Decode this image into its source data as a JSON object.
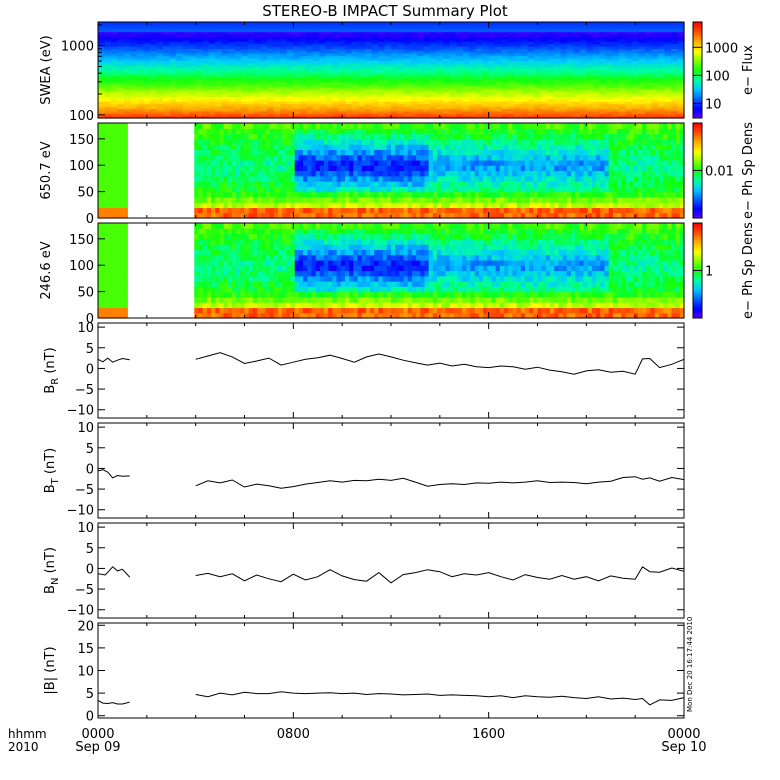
{
  "colors": {
    "background": "#ffffff",
    "axis": "#000000",
    "gap": "#ffffff",
    "colormap": [
      "#5b00ff",
      "#0000ff",
      "#0060ff",
      "#00c8ff",
      "#00ffa0",
      "#10ff10",
      "#80ff00",
      "#ffff00",
      "#ffb000",
      "#ff5000",
      "#ff0000"
    ]
  },
  "chart_data": [
    {
      "type": "heatmap",
      "title": "STEREO-B IMPACT Summary Plot",
      "ylabel": "SWEA (eV)",
      "ylog": true,
      "yticks": [
        100,
        1000
      ],
      "ytick_labels": [
        "100",
        "1000"
      ],
      "colorbar": {
        "label": "e− Flux",
        "log": true,
        "tick_labels": [
          "10",
          "100",
          "1000"
        ],
        "tick_values": [
          10,
          100,
          1000
        ],
        "range": [
          3,
          8000
        ]
      },
      "description_bands": "high energy low flux, low energy high flux"
    },
    {
      "type": "heatmap",
      "ylabel": "650.7 eV",
      "ylim": [
        0,
        180
      ],
      "yticks": [
        0,
        50,
        100,
        150
      ],
      "ytick_labels": [
        "0",
        "50",
        "100",
        "150"
      ],
      "colorbar": {
        "label": "e− Ph Sp Dens",
        "tick_labels": [
          "0.01"
        ],
        "tick_values": [
          0.01
        ]
      },
      "data_gap_hours": [
        1.15,
        3.95
      ]
    },
    {
      "type": "heatmap",
      "ylabel": "246.6 eV",
      "ylim": [
        0,
        180
      ],
      "yticks": [
        0,
        50,
        100,
        150
      ],
      "ytick_labels": [
        "0",
        "50",
        "100",
        "150"
      ],
      "colorbar": {
        "label": "e− Ph Sp Dens",
        "tick_labels": [
          "1"
        ],
        "tick_values": [
          1
        ]
      },
      "data_gap_hours": [
        1.15,
        3.95
      ]
    },
    {
      "type": "line",
      "ylabel_main": "B",
      "ylabel_sub": "R",
      "ylabel_unit": " (nT)",
      "ylim": [
        -12,
        11
      ],
      "yticks": [
        -10,
        -5,
        0,
        5,
        10
      ],
      "ytick_labels": [
        "−10",
        "−5",
        "0",
        "5",
        "10"
      ],
      "segments": [
        {
          "x": [
            0,
            0.2,
            0.4,
            0.6,
            0.8,
            1.0,
            1.3
          ],
          "y": [
            2.2,
            1.6,
            2.5,
            1.5,
            2.0,
            2.4,
            2.1
          ]
        },
        {
          "x": [
            4,
            4.5,
            5,
            5.5,
            6,
            6.5,
            7,
            7.5,
            8,
            8.5,
            9,
            9.5,
            10,
            10.5,
            11,
            11.5,
            12,
            12.5,
            13,
            13.5,
            14,
            14.5,
            15,
            15.5,
            16,
            16.5,
            17,
            17.5,
            18,
            18.5,
            19,
            19.5,
            20,
            20.5,
            21,
            21.5,
            22,
            22.3,
            22.6,
            23,
            23.5,
            24
          ],
          "y": [
            2.2,
            3.0,
            3.8,
            2.8,
            1.2,
            1.8,
            2.5,
            0.8,
            1.5,
            2.2,
            2.6,
            3.2,
            2.4,
            1.5,
            2.8,
            3.5,
            2.8,
            2.0,
            1.4,
            0.8,
            1.3,
            0.6,
            1.0,
            0.4,
            0.2,
            0.6,
            0.4,
            -0.2,
            0.3,
            -0.4,
            -0.8,
            -1.4,
            -0.6,
            -0.3,
            -0.9,
            -0.7,
            -1.4,
            2.3,
            2.4,
            0.2,
            1.0,
            2.2
          ]
        }
      ]
    },
    {
      "type": "line",
      "ylabel_main": "B",
      "ylabel_sub": "T",
      "ylabel_unit": " (nT)",
      "ylim": [
        -12,
        11
      ],
      "yticks": [
        -10,
        -5,
        0,
        5,
        10
      ],
      "ytick_labels": [
        "−10",
        "−5",
        "0",
        "5",
        "10"
      ],
      "segments": [
        {
          "x": [
            0,
            0.2,
            0.4,
            0.6,
            0.8,
            1.0,
            1.3
          ],
          "y": [
            -0.6,
            -0.3,
            -0.9,
            -2.3,
            -1.7,
            -1.9,
            -1.8
          ]
        },
        {
          "x": [
            4,
            4.5,
            5,
            5.5,
            6,
            6.5,
            7,
            7.5,
            8,
            8.5,
            9,
            9.5,
            10,
            10.5,
            11,
            11.5,
            12,
            12.5,
            13,
            13.5,
            14,
            14.5,
            15,
            15.5,
            16,
            16.5,
            17,
            17.5,
            18,
            18.5,
            19,
            19.5,
            20,
            20.5,
            21,
            21.5,
            22,
            22.3,
            22.6,
            23,
            23.5,
            24
          ],
          "y": [
            -4.2,
            -3.0,
            -3.5,
            -2.8,
            -4.5,
            -3.8,
            -4.2,
            -4.8,
            -4.4,
            -3.8,
            -3.4,
            -3.0,
            -3.3,
            -2.9,
            -3.0,
            -2.6,
            -2.9,
            -2.4,
            -3.3,
            -4.3,
            -3.9,
            -3.7,
            -3.9,
            -3.5,
            -3.6,
            -3.3,
            -3.5,
            -3.3,
            -3.0,
            -3.4,
            -3.3,
            -3.4,
            -3.7,
            -3.3,
            -3.1,
            -2.2,
            -2.0,
            -2.6,
            -2.3,
            -3.1,
            -2.2,
            -2.7
          ]
        }
      ]
    },
    {
      "type": "line",
      "ylabel_main": "B",
      "ylabel_sub": "N",
      "ylabel_unit": " (nT)",
      "ylim": [
        -12,
        11
      ],
      "yticks": [
        -10,
        -5,
        0,
        5,
        10
      ],
      "ytick_labels": [
        "−10",
        "−5",
        "0",
        "5",
        "10"
      ],
      "segments": [
        {
          "x": [
            0,
            0.3,
            0.6,
            0.8,
            1.0,
            1.3
          ],
          "y": [
            -1.3,
            -1.6,
            0.4,
            -0.6,
            -0.2,
            -2.1
          ]
        },
        {
          "x": [
            4,
            4.5,
            5,
            5.5,
            6,
            6.5,
            7,
            7.5,
            8,
            8.5,
            9,
            9.5,
            10,
            10.5,
            11,
            11.5,
            12,
            12.5,
            13,
            13.5,
            14,
            14.5,
            15,
            15.5,
            16,
            16.5,
            17,
            17.5,
            18,
            18.5,
            19,
            19.5,
            20,
            20.5,
            21,
            21.5,
            22,
            22.3,
            22.6,
            23,
            23.5,
            24
          ],
          "y": [
            -1.7,
            -1.2,
            -2.0,
            -1.3,
            -3.0,
            -1.6,
            -2.5,
            -3.2,
            -1.4,
            -2.8,
            -2.0,
            -0.3,
            -1.8,
            -2.7,
            -3.1,
            -1.0,
            -3.5,
            -1.5,
            -1.0,
            -0.3,
            -0.8,
            -2.0,
            -1.3,
            -1.6,
            -1.0,
            -2.0,
            -2.8,
            -1.5,
            -2.2,
            -2.6,
            -1.7,
            -2.6,
            -2.0,
            -3.0,
            -1.8,
            -2.4,
            -2.6,
            0.4,
            -0.8,
            -0.9,
            0.1,
            -0.7
          ]
        }
      ]
    },
    {
      "type": "line",
      "ylabel_main": "|B|",
      "ylabel_sub": "",
      "ylabel_unit": " (nT)",
      "ylim": [
        -0.5,
        20.5
      ],
      "yticks": [
        0,
        5,
        10,
        15,
        20
      ],
      "ytick_labels": [
        "0",
        "5",
        "10",
        "15",
        "20"
      ],
      "segments": [
        {
          "x": [
            0,
            0.2,
            0.4,
            0.6,
            0.8,
            1.0,
            1.3
          ],
          "y": [
            3.4,
            2.8,
            2.7,
            2.9,
            2.6,
            2.6,
            3.0
          ]
        },
        {
          "x": [
            4,
            4.5,
            5,
            5.5,
            6,
            6.5,
            7,
            7.5,
            8,
            8.5,
            9,
            9.5,
            10,
            10.5,
            11,
            11.5,
            12,
            12.5,
            13,
            13.5,
            14,
            14.5,
            15,
            15.5,
            16,
            16.5,
            17,
            17.5,
            18,
            18.5,
            19,
            19.5,
            20,
            20.5,
            21,
            21.5,
            22,
            22.3,
            22.6,
            23,
            23.5,
            24
          ],
          "y": [
            4.7,
            4.2,
            5.0,
            4.6,
            5.2,
            4.9,
            4.9,
            5.3,
            5.0,
            4.9,
            5.0,
            5.1,
            4.9,
            5.0,
            4.7,
            4.9,
            4.8,
            4.6,
            4.7,
            4.8,
            4.5,
            4.6,
            4.5,
            4.4,
            4.2,
            4.4,
            4.0,
            4.4,
            4.2,
            4.1,
            4.3,
            4.0,
            3.8,
            4.2,
            3.7,
            3.9,
            3.6,
            3.8,
            2.4,
            3.5,
            3.4,
            4.0
          ]
        }
      ]
    }
  ],
  "xaxis": {
    "range_hours": [
      0,
      24
    ],
    "tick_hours": [
      0,
      8,
      16,
      24
    ],
    "tick_labels": [
      "0000",
      "0800",
      "1600",
      "0000"
    ],
    "date_labels": [
      "Sep 09",
      "",
      "",
      "Sep 10"
    ],
    "label_top": "hhmm",
    "label_bottom": "2010"
  },
  "timestamp": "Mon Dec 20 16:17:44 2010"
}
